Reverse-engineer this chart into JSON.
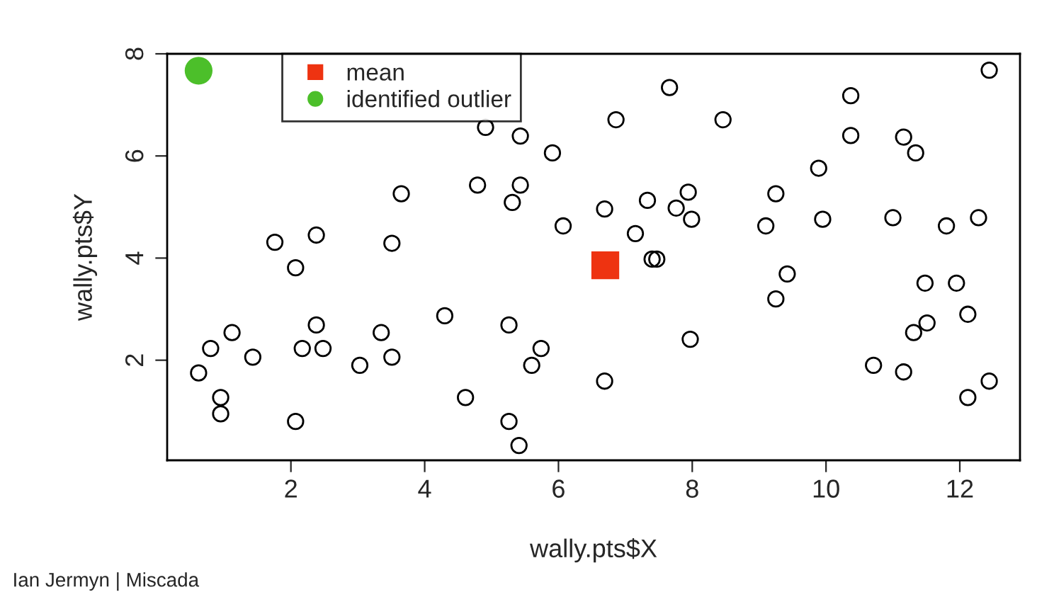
{
  "chart_data": {
    "type": "scatter",
    "xlabel": "wally.pts$X",
    "ylabel": "wally.pts$Y",
    "xlim": [
      0.15,
      12.9
    ],
    "ylim": [
      0.04,
      8.0
    ],
    "xticks": [
      2,
      4,
      6,
      8,
      10,
      12
    ],
    "yticks": [
      2,
      4,
      6,
      8
    ],
    "grid": false,
    "legend": "top left",
    "annotations": [
      "Ian Jermyn | Miscada"
    ],
    "series": [
      {
        "color": "#000000",
        "marker": "circle",
        "x": [
          5.43,
          5.91,
          4.79,
          5.43,
          5.31,
          3.65,
          6.07,
          1.76,
          2.38,
          2.07,
          3.51,
          4.3,
          5.26,
          5.74,
          5.6,
          1.12,
          0.8,
          0.62,
          1.43,
          0.95,
          0.95,
          2.38,
          2.17,
          2.48,
          2.07,
          3.03,
          3.35,
          3.51,
          4.61,
          5.26,
          5.41,
          4.91,
          12.44,
          7.66,
          10.37,
          6.86,
          8.46,
          10.37,
          11.16,
          11.34,
          9.89,
          7.94,
          7.33,
          9.25,
          6.69,
          7.76,
          7.99,
          7.15,
          9.1,
          9.95,
          11.0,
          11.8,
          12.28,
          7.4,
          7.47,
          9.42,
          9.25,
          11.48,
          11.95,
          12.12,
          11.51,
          11.31,
          7.97,
          10.71,
          11.16,
          12.44,
          12.12,
          6.69
        ],
        "values": [
          6.39,
          6.06,
          5.43,
          5.43,
          5.09,
          5.26,
          4.63,
          4.31,
          4.45,
          3.81,
          4.29,
          2.87,
          2.69,
          2.23,
          1.9,
          2.54,
          2.23,
          1.75,
          2.06,
          1.27,
          0.95,
          2.69,
          2.23,
          2.23,
          0.8,
          1.9,
          2.54,
          2.06,
          1.27,
          0.8,
          0.33,
          6.56,
          7.68,
          7.34,
          7.18,
          6.71,
          6.71,
          6.4,
          6.37,
          6.06,
          5.76,
          5.29,
          5.13,
          5.26,
          4.96,
          4.98,
          4.76,
          4.48,
          4.63,
          4.76,
          4.79,
          4.63,
          4.79,
          3.98,
          3.98,
          3.69,
          3.2,
          3.51,
          3.51,
          2.9,
          2.73,
          2.54,
          2.41,
          1.9,
          1.77,
          1.59,
          1.27,
          1.59
        ]
      },
      {
        "name": "mean",
        "color": "#ee3311",
        "marker": "square",
        "x": [
          6.7
        ],
        "values": [
          3.86
        ]
      },
      {
        "name": "identified outlier",
        "color": "#4cbf2a",
        "marker": "circle",
        "x": [
          0.62
        ],
        "values": [
          7.67
        ]
      }
    ]
  }
}
